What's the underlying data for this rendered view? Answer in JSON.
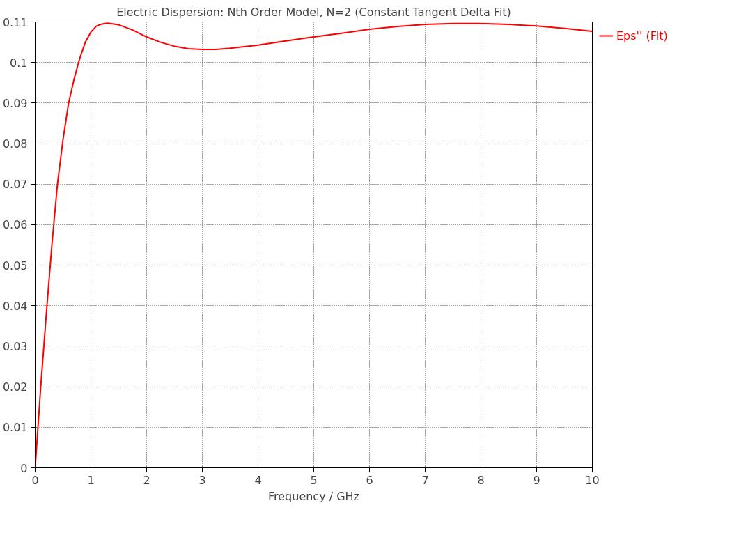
{
  "chart_data": {
    "type": "line",
    "title": "Electric Dispersion: Nth Order Model, N=2 (Constant Tangent Delta Fit)",
    "xlabel": "Frequency / GHz",
    "x": [
      0,
      0.05,
      0.1,
      0.2,
      0.3,
      0.4,
      0.5,
      0.6,
      0.7,
      0.8,
      0.9,
      1.0,
      1.1,
      1.2,
      1.3,
      1.5,
      1.75,
      2.0,
      2.25,
      2.5,
      2.75,
      3.0,
      3.25,
      3.5,
      4.0,
      4.5,
      5.0,
      5.5,
      6.0,
      6.5,
      7.0,
      7.5,
      8.0,
      8.5,
      9.0,
      9.5,
      10
    ],
    "series": [
      {
        "name": "Eps'' (Fit)",
        "color": "#ff0000",
        "values": [
          0,
          0.01,
          0.02,
          0.038,
          0.055,
          0.07,
          0.081,
          0.09,
          0.096,
          0.101,
          0.105,
          0.1075,
          0.109,
          0.1095,
          0.1097,
          0.1093,
          0.108,
          0.1063,
          0.105,
          0.104,
          0.1034,
          0.1032,
          0.1032,
          0.1035,
          0.1043,
          0.1053,
          0.1063,
          0.1072,
          0.1082,
          0.1089,
          0.1094,
          0.1096,
          0.1096,
          0.1094,
          0.109,
          0.1084,
          0.1077
        ]
      }
    ],
    "xlim": [
      0,
      10
    ],
    "xticks": [
      0,
      1,
      2,
      3,
      4,
      5,
      6,
      7,
      8,
      9,
      10
    ],
    "ylim": [
      0,
      0.11
    ],
    "yticks": [
      0,
      0.01,
      0.02,
      0.03,
      0.04,
      0.05,
      0.06,
      0.07,
      0.08,
      0.09,
      0.1,
      0.11
    ],
    "grid": true,
    "legend": "top right",
    "marker": "none",
    "line_style": "solid"
  }
}
